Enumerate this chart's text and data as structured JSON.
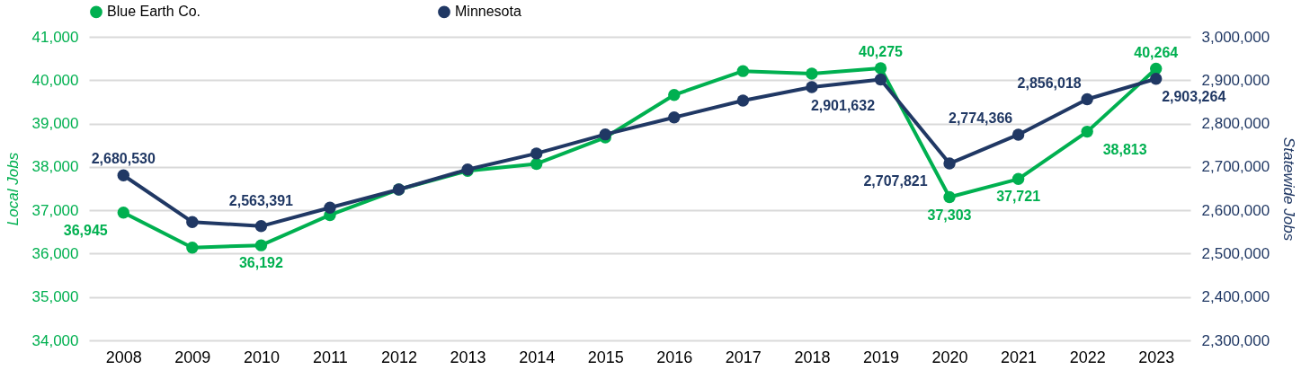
{
  "chart_data": {
    "type": "line",
    "categories": [
      "2008",
      "2009",
      "2010",
      "2011",
      "2012",
      "2013",
      "2014",
      "2015",
      "2016",
      "2017",
      "2018",
      "2019",
      "2020",
      "2021",
      "2022",
      "2023"
    ],
    "series": [
      {
        "name": "Blue Earth Co.",
        "color": "#00b050",
        "axis": "y",
        "values": [
          36945,
          36140,
          36192,
          36890,
          37480,
          37910,
          38070,
          38680,
          39660,
          40210,
          40150,
          40275,
          37303,
          37721,
          38813,
          40264
        ],
        "value_labels": [
          "36,945",
          null,
          "36,192",
          null,
          null,
          null,
          null,
          null,
          null,
          null,
          null,
          "40,275",
          "37,303",
          "37,721",
          "38,813",
          "40,264"
        ]
      },
      {
        "name": "Minnesota",
        "color": "#203864",
        "axis": "y2",
        "values": [
          2680530,
          2573000,
          2563391,
          2606000,
          2648000,
          2694000,
          2731000,
          2775000,
          2814000,
          2853000,
          2884000,
          2901632,
          2707821,
          2774366,
          2856018,
          2903264
        ],
        "value_labels": [
          "2,680,530",
          null,
          "2,563,391",
          null,
          null,
          null,
          null,
          null,
          null,
          null,
          null,
          "2,901,632",
          "2,707,821",
          "2,774,366",
          "2,856,018",
          "2,903,264"
        ]
      }
    ],
    "ylabel": "Local Jobs",
    "y2label": "Statewide Jobs",
    "ylim": [
      34000,
      41000
    ],
    "yticks": [
      {
        "value": 34000,
        "label": "34,000"
      },
      {
        "value": 35000,
        "label": "35,000"
      },
      {
        "value": 36000,
        "label": "36,000"
      },
      {
        "value": 37000,
        "label": "37,000"
      },
      {
        "value": 38000,
        "label": "38,000"
      },
      {
        "value": 39000,
        "label": "39,000"
      },
      {
        "value": 40000,
        "label": "40,000"
      },
      {
        "value": 41000,
        "label": "41,000"
      }
    ],
    "y2lim": [
      2300000,
      3000000
    ],
    "y2ticks": [
      {
        "value": 2300000,
        "label": "2,300,000"
      },
      {
        "value": 2400000,
        "label": "2,400,000"
      },
      {
        "value": 2500000,
        "label": "2,500,000"
      },
      {
        "value": 2600000,
        "label": "2,600,000"
      },
      {
        "value": 2700000,
        "label": "2,700,000"
      },
      {
        "value": 2800000,
        "label": "2,800,000"
      },
      {
        "value": 2900000,
        "label": "2,900,000"
      },
      {
        "value": 3000000,
        "label": "3,000,000"
      }
    ],
    "grid": "y",
    "legend": "top",
    "marker": "circle",
    "line_style": "solid"
  }
}
